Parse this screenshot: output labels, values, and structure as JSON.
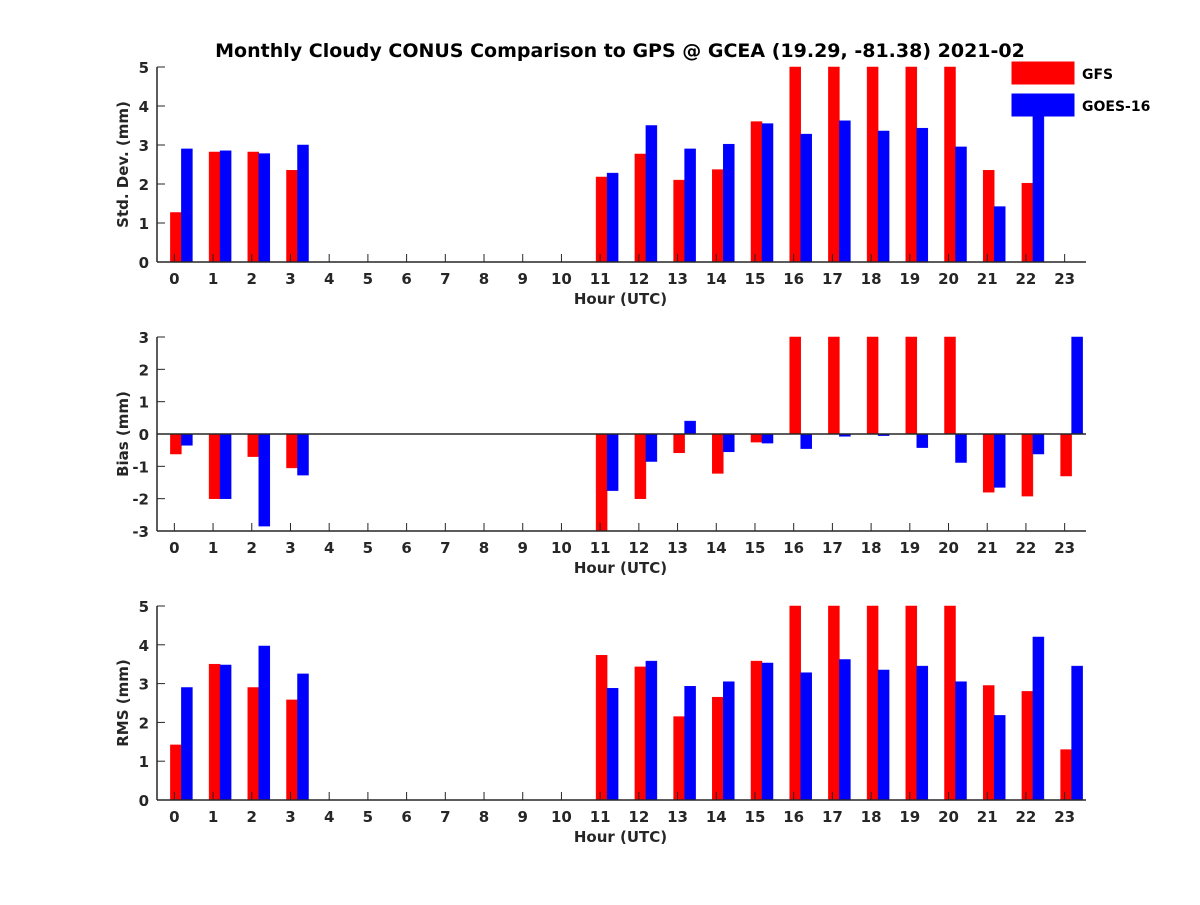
{
  "title": "Monthly Cloudy CONUS Comparison to GPS @ GCEA (19.29, -81.38) 2021-02",
  "colors": {
    "GFS": "#ff0000",
    "GOES-16": "#0000ff"
  },
  "legend": {
    "placement": "top-right",
    "entries": [
      "GFS",
      "GOES-16"
    ]
  },
  "chart_data": [
    {
      "type": "bar",
      "xlabel": "Hour (UTC)",
      "ylabel": "Std. Dev. (mm)",
      "ylim": [
        0,
        5
      ],
      "yticks": [
        0,
        1,
        2,
        3,
        4,
        5
      ],
      "categories": [
        0,
        1,
        2,
        3,
        4,
        5,
        6,
        7,
        8,
        9,
        10,
        11,
        12,
        13,
        14,
        15,
        16,
        17,
        18,
        19,
        20,
        21,
        22,
        23
      ],
      "grid": false,
      "series": [
        {
          "name": "GFS",
          "values": [
            1.27,
            2.82,
            2.82,
            2.35,
            null,
            null,
            null,
            null,
            null,
            null,
            null,
            2.18,
            2.77,
            2.1,
            2.37,
            3.6,
            5.2,
            5.2,
            5.2,
            5.2,
            5.2,
            2.35,
            2.02,
            null
          ]
        },
        {
          "name": "GOES-16",
          "values": [
            2.9,
            2.85,
            2.78,
            3.0,
            null,
            null,
            null,
            null,
            null,
            null,
            null,
            2.28,
            3.5,
            2.9,
            3.02,
            3.55,
            3.28,
            3.62,
            3.36,
            3.43,
            2.95,
            1.42,
            4.15,
            null
          ]
        }
      ]
    },
    {
      "type": "bar",
      "xlabel": "Hour (UTC)",
      "ylabel": "Bias (mm)",
      "ylim": [
        -3,
        3
      ],
      "yticks": [
        -3,
        -2,
        -1,
        0,
        1,
        2,
        3
      ],
      "categories": [
        0,
        1,
        2,
        3,
        4,
        5,
        6,
        7,
        8,
        9,
        10,
        11,
        12,
        13,
        14,
        15,
        16,
        17,
        18,
        19,
        20,
        21,
        22,
        23
      ],
      "grid": false,
      "series": [
        {
          "name": "GFS",
          "values": [
            -0.62,
            -2.0,
            -0.7,
            -1.05,
            null,
            null,
            null,
            null,
            null,
            null,
            null,
            -3.2,
            -2.0,
            -0.58,
            -1.22,
            -0.25,
            3.2,
            3.2,
            3.2,
            3.2,
            3.2,
            -1.8,
            -1.92,
            -1.3
          ]
        },
        {
          "name": "GOES-16",
          "values": [
            -0.35,
            -2.0,
            -2.85,
            -1.27,
            null,
            null,
            null,
            null,
            null,
            null,
            null,
            -1.75,
            -0.85,
            0.4,
            -0.55,
            -0.28,
            -0.45,
            -0.07,
            -0.05,
            -0.42,
            -0.88,
            -1.65,
            -0.62,
            3.2
          ]
        }
      ]
    },
    {
      "type": "bar",
      "xlabel": "Hour (UTC)",
      "ylabel": "RMS (mm)",
      "ylim": [
        0,
        5
      ],
      "yticks": [
        0,
        1,
        2,
        3,
        4,
        5
      ],
      "categories": [
        0,
        1,
        2,
        3,
        4,
        5,
        6,
        7,
        8,
        9,
        10,
        11,
        12,
        13,
        14,
        15,
        16,
        17,
        18,
        19,
        20,
        21,
        22,
        23
      ],
      "grid": false,
      "series": [
        {
          "name": "GFS",
          "values": [
            1.42,
            3.5,
            2.9,
            2.58,
            null,
            null,
            null,
            null,
            null,
            null,
            null,
            3.73,
            3.43,
            2.15,
            2.65,
            3.58,
            5.2,
            5.2,
            5.2,
            5.2,
            5.2,
            2.95,
            2.8,
            1.3
          ]
        },
        {
          "name": "GOES-16",
          "values": [
            2.9,
            3.48,
            3.97,
            3.25,
            null,
            null,
            null,
            null,
            null,
            null,
            null,
            2.88,
            3.58,
            2.93,
            3.05,
            3.53,
            3.28,
            3.62,
            3.35,
            3.45,
            3.05,
            2.18,
            4.2,
            3.45
          ]
        }
      ]
    }
  ]
}
